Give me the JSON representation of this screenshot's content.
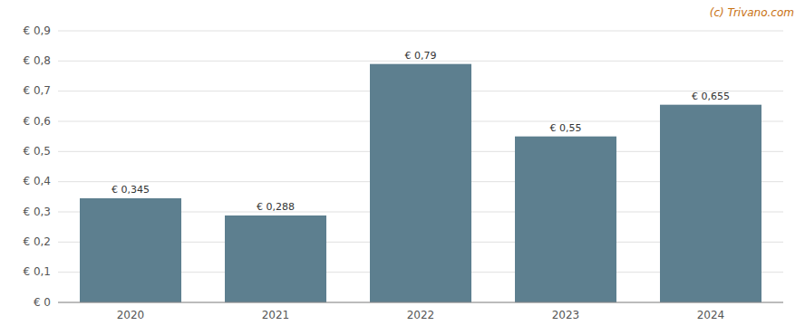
{
  "chart_data": {
    "type": "bar",
    "annotation": "(c) Trivano.com",
    "categories": [
      "2020",
      "2021",
      "2022",
      "2023",
      "2024"
    ],
    "values": [
      0.345,
      0.288,
      0.79,
      0.55,
      0.655
    ],
    "value_labels": [
      "€ 0,345",
      "€ 0,288",
      "€ 0,79",
      "€ 0,55",
      "€ 0,655"
    ],
    "color": "#5d7f8f",
    "ylim": [
      0,
      0.9
    ],
    "yticks": [
      {
        "value": 0,
        "label": "€ 0"
      },
      {
        "value": 0.1,
        "label": "€ 0,1"
      },
      {
        "value": 0.2,
        "label": "€ 0,2"
      },
      {
        "value": 0.3,
        "label": "€ 0,3"
      },
      {
        "value": 0.4,
        "label": "€ 0,4"
      },
      {
        "value": 0.5,
        "label": "€ 0,5"
      },
      {
        "value": 0.6,
        "label": "€ 0,6"
      },
      {
        "value": 0.7,
        "label": "€ 0,7"
      },
      {
        "value": 0.8,
        "label": "€ 0,8"
      },
      {
        "value": 0.9,
        "label": "€ 0,9"
      }
    ],
    "grid": true,
    "data_labels": true
  }
}
